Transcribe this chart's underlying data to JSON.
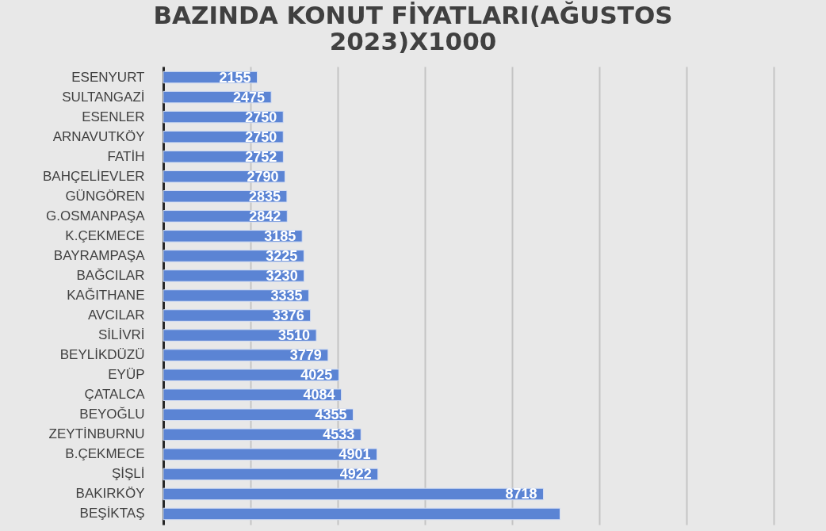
{
  "chart_data": {
    "type": "bar",
    "orientation": "horizontal",
    "title": "BAZINDA KONUT FİYATLARI(AĞUSTOS 2023)X1000",
    "categories": [
      "ESENYURT",
      "SULTANGAZİ",
      "ESENLER",
      "ARNAVUTKÖY",
      "FATİH",
      "BAHÇELİEVLER",
      "GÜNGÖREN",
      "G.OSMANPAŞA",
      "K.ÇEKMECE",
      "BAYRAMPAŞA",
      "BAĞCILAR",
      "KAĞITHANE",
      "AVCILAR",
      "SİLİVRİ",
      "BEYLİKDÜZÜ",
      "EYÜP",
      "ÇATALCA",
      "BEYOĞLU",
      "ZEYTİNBURNU",
      "B.ÇEKMECE",
      "ŞİŞLİ",
      "BAKIRKÖY",
      "BEŞİKTAŞ"
    ],
    "values": [
      2155,
      2475,
      2750,
      2750,
      2752,
      2790,
      2835,
      2842,
      3185,
      3225,
      3230,
      3335,
      3376,
      3510,
      3779,
      4025,
      4084,
      4355,
      4533,
      4901,
      4922,
      8718,
      9100
    ],
    "value_labels": [
      "2155",
      "2475",
      "2750",
      "2750",
      "2752",
      "2790",
      "2835",
      "2842",
      "3185",
      "3225",
      "3230",
      "3335",
      "3376",
      "3510",
      "3779",
      "4025",
      "4084",
      "4355",
      "4533",
      "4901",
      "4922",
      "8718",
      null
    ],
    "color": "#5b84d4",
    "xlim": [
      0,
      14000
    ],
    "xticks": [
      {
        "value": 0,
        "label": null
      },
      {
        "value": 2000,
        "label": null
      },
      {
        "value": 4000,
        "label": null
      },
      {
        "value": 6000,
        "label": null
      },
      {
        "value": 8000,
        "label": null
      },
      {
        "value": 10000,
        "label": null
      },
      {
        "value": 12000,
        "label": null
      },
      {
        "value": 14000,
        "label": null
      }
    ],
    "grid": "x",
    "tick_labels": "y"
  }
}
